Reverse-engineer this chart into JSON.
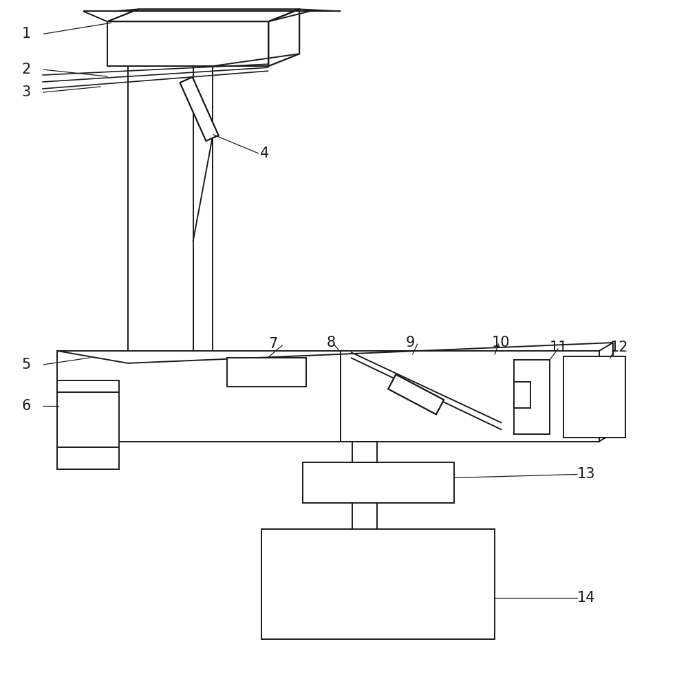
{
  "bg_color": "#ffffff",
  "line_color": "#1a1a1a",
  "line_width": 1.4,
  "fig_width": 9.84,
  "fig_height": 10.0,
  "dpi": 100
}
